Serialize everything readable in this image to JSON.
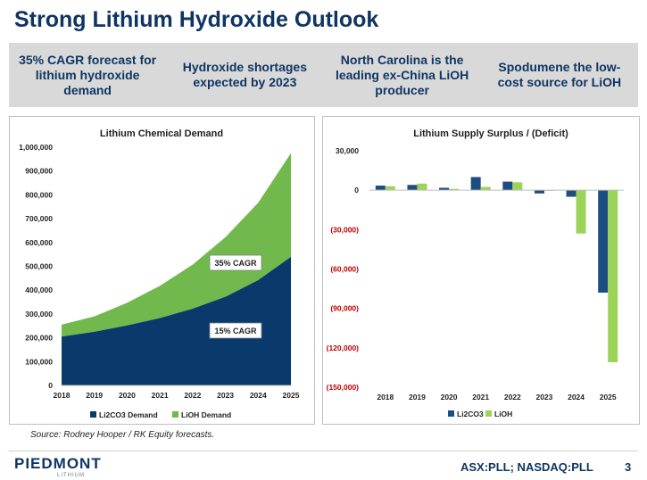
{
  "title": "Strong Lithium Hydroxide Outlook",
  "banner": [
    "35% CAGR forecast for lithium hydroxide demand",
    "Hydroxide shortages expected by 2023",
    "North Carolina is the leading ex-China LiOH producer",
    "Spodumene the low-cost source for LiOH"
  ],
  "source": "Source: Rodney Hooper / RK Equity forecasts.",
  "logo": {
    "name": "PIEDMONT",
    "sub": "LITHIUM"
  },
  "ticker": "ASX:PLL; NASDAQ:PLL",
  "page_number": "3",
  "colors": {
    "navy": "#0f3563",
    "green": "#71b94c",
    "dark_blue_series": "#1d4e80",
    "light_green_series": "#9cd45a",
    "negative": "#c00000"
  },
  "chart_data": [
    {
      "type": "area",
      "title": "Lithium Chemical Demand",
      "x": [
        "2018",
        "2019",
        "2020",
        "2021",
        "2022",
        "2023",
        "2024",
        "2025"
      ],
      "ylim": [
        0,
        1000000
      ],
      "yticks": [
        "0",
        "100,000",
        "200,000",
        "300,000",
        "400,000",
        "500,000",
        "600,000",
        "700,000",
        "800,000",
        "900,000",
        "1,000,000"
      ],
      "stacked": true,
      "series": [
        {
          "name": "Li2CO3 Demand",
          "color": "#0a3a6b",
          "values": [
            205000,
            225000,
            252000,
            283000,
            322000,
            372000,
            442000,
            540000
          ]
        },
        {
          "name": "LiOH Demand",
          "color": "#71b94c",
          "values": [
            50000,
            65000,
            95000,
            135000,
            185000,
            250000,
            325000,
            435000
          ]
        }
      ],
      "annotations": [
        "35% CAGR",
        "15% CAGR"
      ],
      "legend": "bottom",
      "grid": false
    },
    {
      "type": "bar",
      "title": "Lithium Supply Surplus / (Deficit)",
      "categories": [
        "2018",
        "2019",
        "2020",
        "2021",
        "2022",
        "2023",
        "2024",
        "2025"
      ],
      "ylim": [
        -150000,
        30000
      ],
      "yticks": [
        "30,000",
        "0",
        "(30,000)",
        "(60,000)",
        "(90,000)",
        "(120,000)",
        "(150,000)"
      ],
      "series": [
        {
          "name": "Li2CO3",
          "color": "#1d4e80",
          "values": [
            3500,
            4000,
            1800,
            10000,
            6500,
            -2500,
            -5000,
            -78000
          ]
        },
        {
          "name": "LiOH",
          "color": "#9cd45a",
          "values": [
            3000,
            5000,
            1000,
            2500,
            6000,
            -500,
            -33000,
            -131000
          ]
        }
      ],
      "legend": "bottom",
      "grid": false
    }
  ]
}
